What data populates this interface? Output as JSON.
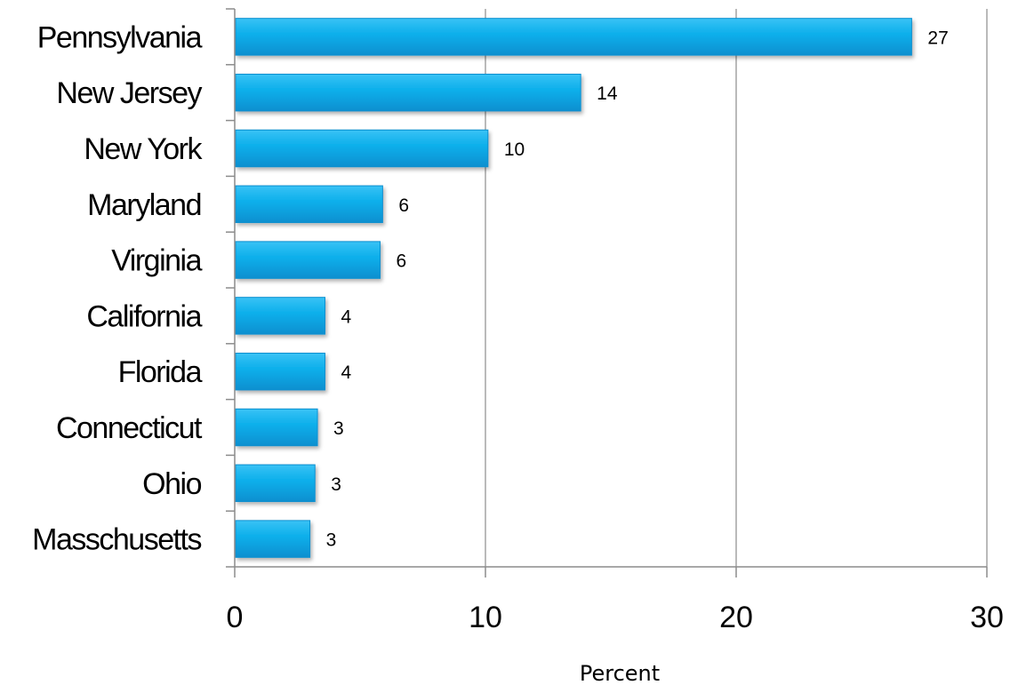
{
  "chart_data": {
    "type": "bar",
    "orientation": "horizontal",
    "categories": [
      "Pennsylvania",
      "New Jersey",
      "New York",
      "Maryland",
      "Virginia",
      "California",
      "Florida",
      "Connecticut",
      "Ohio",
      "Masschusetts"
    ],
    "values": [
      27,
      13.8,
      10.1,
      5.9,
      5.8,
      3.6,
      3.6,
      3.3,
      3.2,
      3.0
    ],
    "data_labels": [
      "27",
      "14",
      "10",
      "6",
      "6",
      "4",
      "4",
      "3",
      "3",
      "3"
    ],
    "xlabel": "Percent",
    "xlim": [
      0,
      30
    ],
    "xticks": [
      "0",
      "10",
      "20",
      "30"
    ],
    "grid": true,
    "bar_color": "#0aa8e6"
  }
}
